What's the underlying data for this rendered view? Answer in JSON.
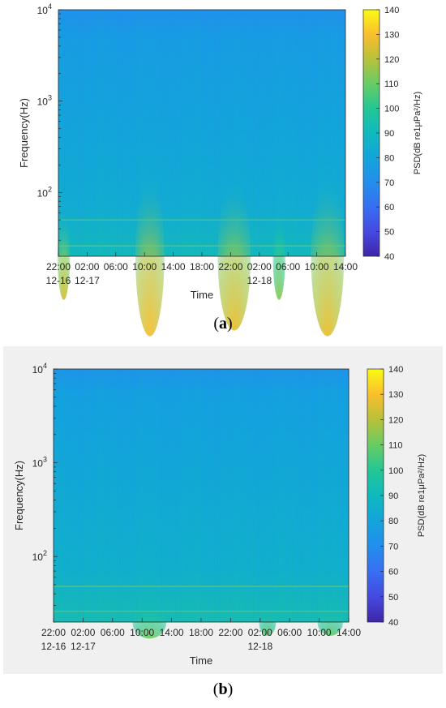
{
  "chart_data": [
    {
      "type": "heatmap",
      "panel_label": "a",
      "xlabel": "Time",
      "ylabel": "Frequency(Hz)",
      "yscale": "log",
      "ylim": [
        20,
        10000
      ],
      "y_ticks": [
        {
          "value": 100,
          "base": "10",
          "exp": "2"
        },
        {
          "value": 1000,
          "base": "10",
          "exp": "3"
        },
        {
          "value": 10000,
          "base": "10",
          "exp": "4"
        }
      ],
      "x_ticks": [
        {
          "label": "22:00",
          "date": "12-16"
        },
        {
          "label": "02:00",
          "date": "12-17"
        },
        {
          "label": "06:00",
          "date": ""
        },
        {
          "label": "10:00",
          "date": ""
        },
        {
          "label": "14:00",
          "date": ""
        },
        {
          "label": "18:00",
          "date": ""
        },
        {
          "label": "22:00",
          "date": ""
        },
        {
          "label": "02:00",
          "date": "12-18"
        },
        {
          "label": "06:00",
          "date": ""
        },
        {
          "label": "10:00",
          "date": ""
        },
        {
          "label": "14:00",
          "date": ""
        }
      ],
      "colorbar": {
        "label": "PSD(dB re1μPa²/Hz)",
        "min": 40,
        "max": 140,
        "ticks": [
          40,
          50,
          60,
          70,
          80,
          90,
          100,
          110,
          120,
          130,
          140
        ]
      },
      "background_level_db": 78,
      "hotspots": [
        {
          "start": "22:00",
          "end": "23:30",
          "level_db": 125,
          "top_hz": 60
        },
        {
          "start": "09:00",
          "end": "12:30",
          "level_db": 130,
          "top_hz": 150
        },
        {
          "start": "20:30",
          "end": "00:30",
          "level_db": 128,
          "top_hz": 130
        },
        {
          "start": "04:00",
          "end": "05:30",
          "level_db": 115,
          "top_hz": 60
        },
        {
          "start": "09:30",
          "end": "13:30",
          "level_db": 128,
          "top_hz": 150
        }
      ],
      "tonal_lines": [
        {
          "freq_hz": 50,
          "level_db": 110
        },
        {
          "freq_hz": 26,
          "level_db": 112
        }
      ]
    },
    {
      "type": "heatmap",
      "panel_label": "b",
      "xlabel": "Time",
      "ylabel": "Frequency(Hz)",
      "yscale": "log",
      "ylim": [
        20,
        10000
      ],
      "y_ticks": [
        {
          "value": 100,
          "base": "10",
          "exp": "2"
        },
        {
          "value": 1000,
          "base": "10",
          "exp": "3"
        },
        {
          "value": 10000,
          "base": "10",
          "exp": "4"
        }
      ],
      "x_ticks": [
        {
          "label": "22:00",
          "date": "12-16"
        },
        {
          "label": "02:00",
          "date": "12-17"
        },
        {
          "label": "06:00",
          "date": ""
        },
        {
          "label": "10:00",
          "date": ""
        },
        {
          "label": "14:00",
          "date": ""
        },
        {
          "label": "18:00",
          "date": ""
        },
        {
          "label": "22:00",
          "date": ""
        },
        {
          "label": "02:00",
          "date": "12-18"
        },
        {
          "label": "06:00",
          "date": ""
        },
        {
          "label": "10:00",
          "date": ""
        },
        {
          "label": "14:00",
          "date": ""
        }
      ],
      "colorbar": {
        "label": "PSD(dB re1μPa²/Hz)",
        "min": 40,
        "max": 140,
        "ticks": [
          40,
          50,
          60,
          70,
          80,
          90,
          100,
          110,
          120,
          130,
          140
        ]
      },
      "background_level_db": 80,
      "hotspots": [
        {
          "start": "09:00",
          "end": "13:00",
          "level_db": 112,
          "top_hz": 30
        },
        {
          "start": "02:00",
          "end": "04:00",
          "level_db": 110,
          "top_hz": 28
        },
        {
          "start": "10:00",
          "end": "13:00",
          "level_db": 110,
          "top_hz": 28
        }
      ],
      "tonal_lines": [
        {
          "freq_hz": 48,
          "level_db": 112
        },
        {
          "freq_hz": 26,
          "level_db": 110
        }
      ]
    }
  ]
}
